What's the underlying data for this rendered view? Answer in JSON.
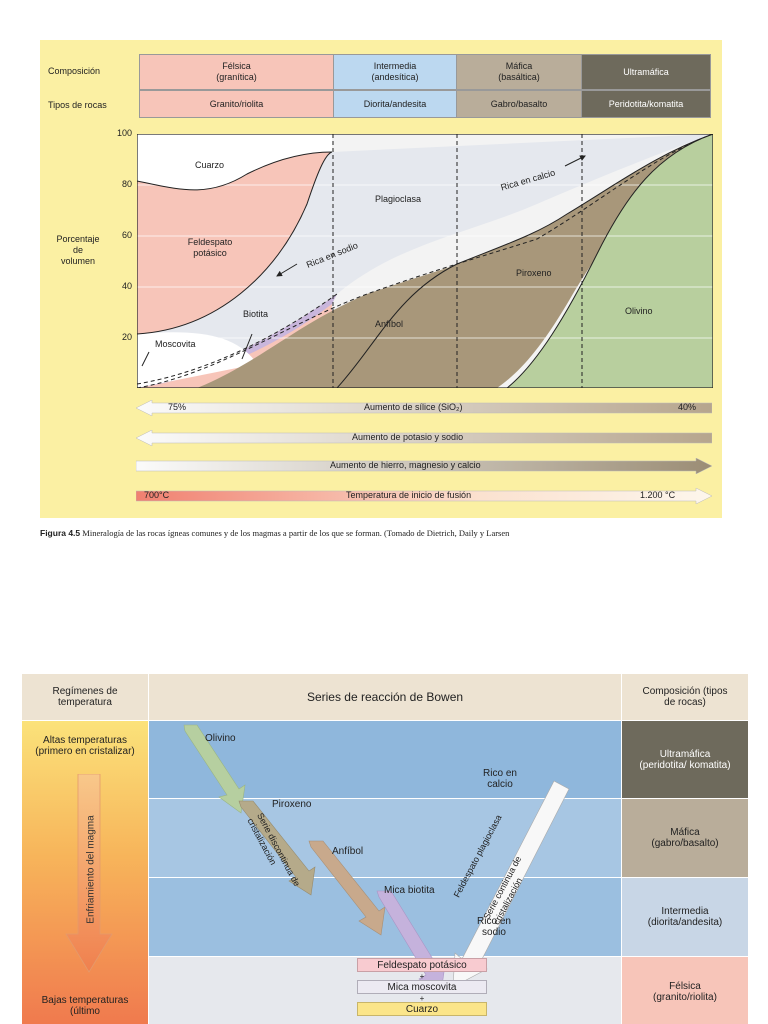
{
  "top_figure": {
    "row_labels": {
      "composition": "Composición",
      "rock_types": "Tipos de rocas"
    },
    "compositions": [
      {
        "name": "Félsica",
        "sub": "(granítica)",
        "rock": "Granito/riolita",
        "color": "#f7c5b9"
      },
      {
        "name": "Intermedia",
        "sub": "(andesítica)",
        "rock": "Diorita/andesita",
        "color": "#bcd8f0"
      },
      {
        "name": "Máfica",
        "sub": "(basáltica)",
        "rock": "Gabro/basalto",
        "color": "#b9ad9a"
      },
      {
        "name": "Ultramáfica",
        "sub": "",
        "rock": "Peridotita/komatita",
        "color": "#6e6a5c"
      }
    ],
    "y_axis": {
      "label_line1": "Porcentaje",
      "label_line2": "de",
      "label_line3": "volumen",
      "ticks": [
        "100",
        "80",
        "60",
        "40",
        "20"
      ]
    },
    "minerals": {
      "quartz": "Cuarzo",
      "k_feldspar_1": "Feldespato",
      "k_feldspar_2": "potásico",
      "plagioclase": "Plagioclasa",
      "biotite": "Biotita",
      "muscovite": "Moscovita",
      "amphibole": "Anfíbol",
      "pyroxene": "Piroxeno",
      "olivine": "Olivino",
      "rich_sodium": "Rica en sodio",
      "rich_calcium": "Rica en calcio"
    },
    "trend_bars": {
      "silica": {
        "label": "Aumento de sílice (SiO₂)",
        "left": "75%",
        "right": "40%"
      },
      "potassium": {
        "label": "Aumento de potasio y sodio"
      },
      "iron": {
        "label": "Aumento de hierro, magnesio y calcio"
      },
      "melting": {
        "label": "Temperatura de inicio de fusión",
        "left": "700°C",
        "right": "1.200 °C"
      }
    },
    "caption": {
      "fig": "Figura 4.5",
      "text": " Mineralogía de las rocas ígneas comunes y de los magmas a partir de los que se forman. (Tomado de Dietrich, Daily y Larsen"
    }
  },
  "bottom_figure": {
    "header": {
      "left": "Regímenes de temperatura",
      "center": "Series de reacción de Bowen",
      "right": "Composición (tipos de rocas)"
    },
    "temperature": {
      "high": "Altas temperaturas (primero en cristalizar)",
      "cooling": "Enfriamiento del magma",
      "low": "Bajas temperaturas (último"
    },
    "series": {
      "olivine": "Olivino",
      "pyroxene": "Piroxeno",
      "amphibole": "Anfíbol",
      "biotite": "Mica biotita",
      "discontinuous": "Serie discontinua de cristalización",
      "plagioclase": "Feldespato plagioclasa",
      "continuous": "Serie continua de cristalización",
      "rich_calcium": "Rico en calcio",
      "rich_sodium": "Rico en sodio",
      "k_feldspar": "Feldespato potásico",
      "plus1": "+",
      "muscovite": "Mica moscovita",
      "plus2": "+",
      "quartz": "Cuarzo"
    },
    "compositions": [
      {
        "label": "Ultramáfica (peridotita/ komatita)",
        "color": "#6e6a5c",
        "text_color": "#ffffff"
      },
      {
        "label": "Máfica (gabro/basalto)",
        "color": "#b9ad9a",
        "text_color": "#222222"
      },
      {
        "label": "Intermedia (diorita/andesita)",
        "color": "#c8d6e6",
        "text_color": "#222222"
      },
      {
        "label": "Félsica (granito/riolita)",
        "color": "#f7c5b9",
        "text_color": "#222222"
      }
    ]
  }
}
